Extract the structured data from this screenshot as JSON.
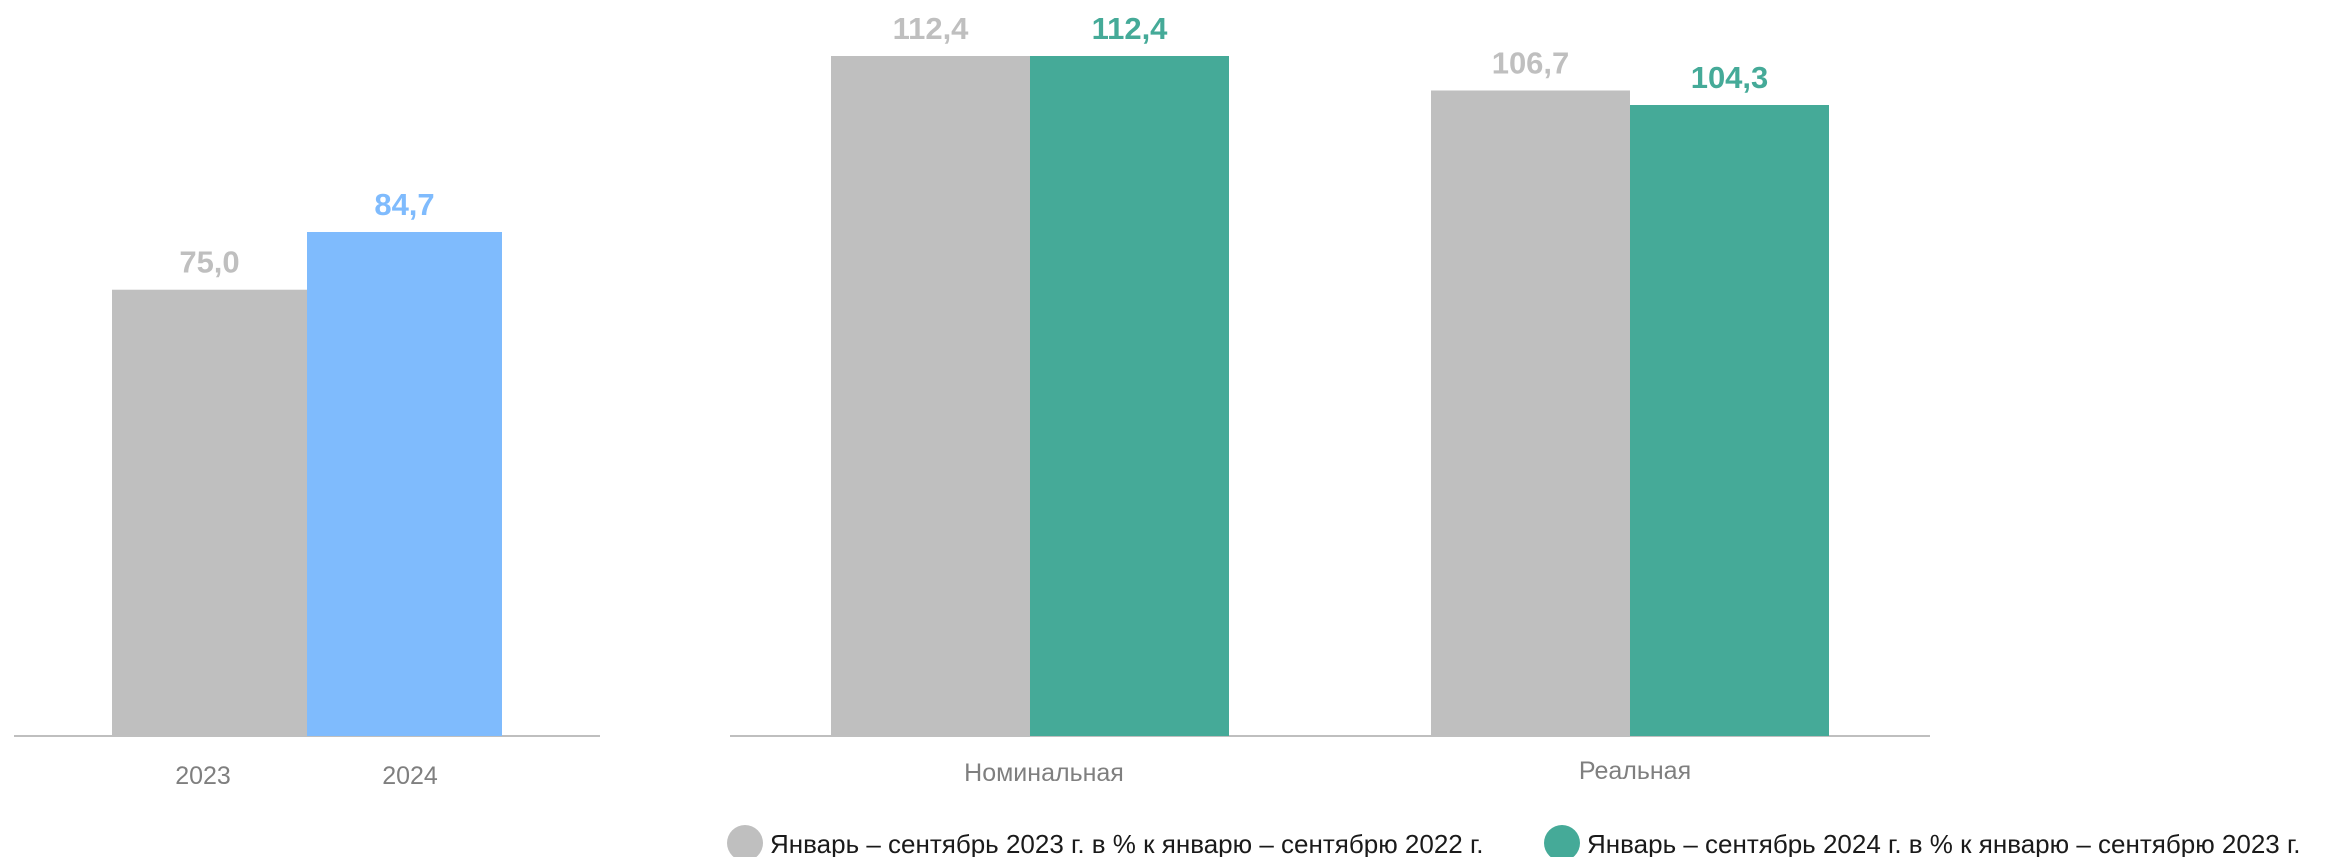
{
  "colors": {
    "gray": "#bfbfbf",
    "blue": "#7fbbfd",
    "teal": "#45aa98",
    "axis": "#bfbfbf",
    "tick_text": "#7f7f7f"
  },
  "chart_data": [
    {
      "type": "bar",
      "categories": [
        "2023",
        "2024"
      ],
      "values": [
        75.0,
        84.7
      ],
      "value_labels": [
        "75,0",
        "84,7"
      ],
      "bar_colors": [
        "#bfbfbf",
        "#7fbbfd"
      ],
      "ylim": [
        0,
        110
      ],
      "grid": false,
      "title": "",
      "xlabel": "",
      "ylabel": ""
    },
    {
      "type": "bar",
      "categories": [
        "Номинальная",
        "Реальная"
      ],
      "series": [
        {
          "name": "Январь – сентябрь 2023 г. в % к январю – сентябрю 2022 г.",
          "values": [
            112.4,
            106.7
          ],
          "value_labels": [
            "112,4",
            "106,7"
          ],
          "color": "#bfbfbf"
        },
        {
          "name": "Январь – сентябрь 2024 г. в % к январю – сентябрю 2023 г.",
          "values": [
            112.4,
            104.3
          ],
          "value_labels": [
            "112,4",
            "104,3"
          ],
          "color": "#45aa98"
        }
      ],
      "ylim": [
        0,
        112.4
      ],
      "grid": false,
      "legend_position": "bottom",
      "title": "",
      "xlabel": "",
      "ylabel": ""
    }
  ]
}
